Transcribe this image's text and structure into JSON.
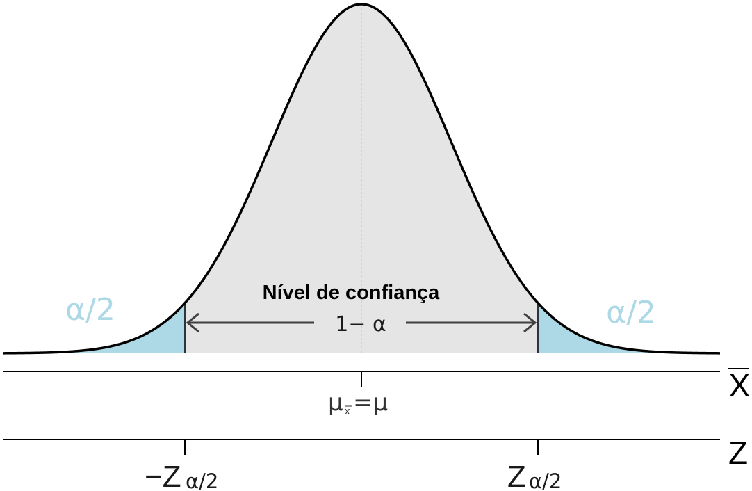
{
  "labels": {
    "confidence_title": "Nível de confiança",
    "confidence_value": "1− α",
    "left_tail": "α/2",
    "right_tail": "α/2",
    "mean_mu": "μ",
    "mean_sub": "x",
    "mean_eq": "=μ",
    "xbar_axis": "X",
    "z_axis": "Z",
    "z_neg_main": "−Z",
    "z_neg_sub": "α/2",
    "z_pos_main": "Z",
    "z_pos_sub": "α/2"
  },
  "distribution": {
    "x_domain": [
      -4,
      4
    ],
    "critical_z": 1.96
  },
  "colors": {
    "curve": "#000000",
    "center_fill": "#e5e5e5",
    "tail_fill": "#add8e6",
    "tail_label": "#add8e6",
    "arrow": "#404040",
    "text": "#1a1a1a",
    "axis": "#000000",
    "midline": "#bdbdbd"
  }
}
